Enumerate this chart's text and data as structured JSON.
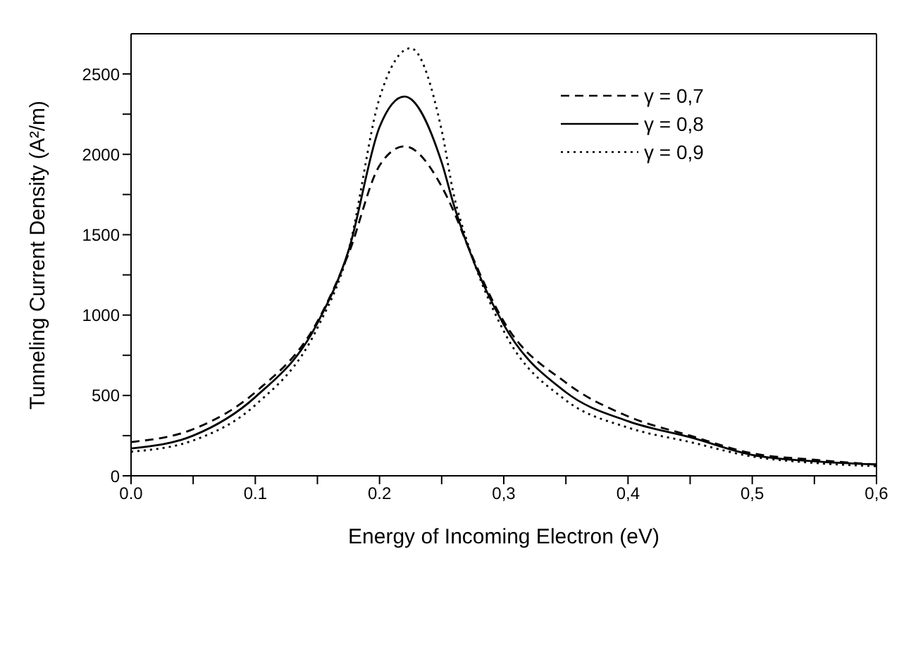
{
  "chart_data": {
    "type": "line",
    "xlabel": "Energy of Incoming Electron (eV)",
    "ylabel": "Tunneling Current Density (A²/m)",
    "xlim": [
      0,
      0.6
    ],
    "ylim": [
      0,
      2750
    ],
    "xticks": [
      {
        "value": 0,
        "label": "0.0"
      },
      {
        "value": 0.05,
        "label": null
      },
      {
        "value": 0.1,
        "label": "0.1"
      },
      {
        "value": 0.15,
        "label": null
      },
      {
        "value": 0.2,
        "label": "0.2"
      },
      {
        "value": 0.25,
        "label": null
      },
      {
        "value": 0.3,
        "label": "0,3"
      },
      {
        "value": 0.35,
        "label": null
      },
      {
        "value": 0.4,
        "label": "0,4"
      },
      {
        "value": 0.45,
        "label": null
      },
      {
        "value": 0.5,
        "label": "0,5"
      },
      {
        "value": 0.55,
        "label": null
      },
      {
        "value": 0.6,
        "label": "0,6"
      }
    ],
    "yticks": [
      0,
      {
        "value": 250,
        "label": null
      },
      500,
      {
        "value": 750,
        "label": null
      },
      1000,
      {
        "value": 1250,
        "label": null
      },
      1500,
      {
        "value": 1750,
        "label": null
      },
      2000,
      {
        "value": 2250,
        "label": null
      },
      2500
    ],
    "legend": "top right",
    "marker": "none",
    "series": [
      {
        "name": "γ = 0,7",
        "color": "#000000",
        "line_style": "dashed",
        "x": [
          0,
          0.05,
          0.1,
          0.15,
          0.175,
          0.2,
          0.22,
          0.25,
          0.26,
          0.27,
          0.3,
          0.35,
          0.4,
          0.45,
          0.5,
          0.55,
          0.6
        ],
        "values": [
          210,
          290,
          520,
          960,
          1380,
          1930,
          2050,
          1800,
          1640,
          1450,
          960,
          580,
          370,
          250,
          140,
          100,
          70
        ]
      },
      {
        "name": "γ = 0,8",
        "color": "#000000",
        "line_style": "solid",
        "x": [
          0,
          0.05,
          0.1,
          0.15,
          0.175,
          0.2,
          0.22,
          0.25,
          0.26,
          0.27,
          0.3,
          0.35,
          0.4,
          0.45,
          0.5,
          0.55,
          0.6
        ],
        "values": [
          170,
          250,
          490,
          950,
          1400,
          2170,
          2360,
          1950,
          1680,
          1450,
          940,
          520,
          340,
          240,
          130,
          90,
          70
        ]
      },
      {
        "name": "γ = 0,9",
        "color": "#000000",
        "line_style": "dotted",
        "x": [
          0,
          0.05,
          0.1,
          0.15,
          0.175,
          0.2,
          0.225,
          0.25,
          0.26,
          0.27,
          0.3,
          0.35,
          0.4,
          0.45,
          0.5,
          0.55,
          0.6
        ],
        "values": [
          150,
          220,
          440,
          920,
          1400,
          2350,
          2660,
          2150,
          1740,
          1470,
          900,
          470,
          300,
          210,
          120,
          80,
          60
        ]
      }
    ]
  }
}
